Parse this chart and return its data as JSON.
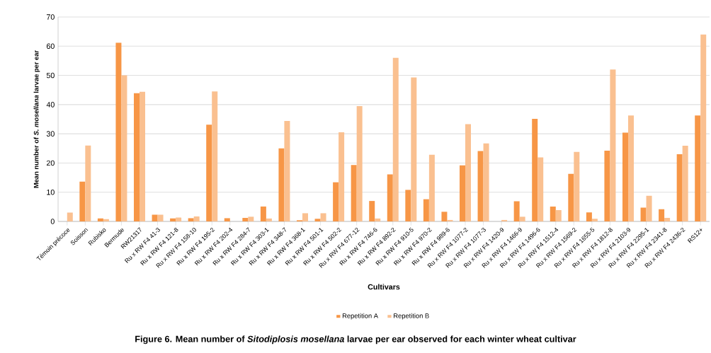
{
  "chart_data": {
    "type": "bar",
    "xlabel": "Cultivars",
    "ylabel": "Mean number of *S. mosellana* larvae per ear",
    "annotations": [
      "Figure 6. Mean number of *Sitodiplosis mosellana* larvae per ear observed for each winter wheat cultivar"
    ],
    "categories": [
      "Témoin précoce",
      "Soisson",
      "Rubisko",
      "Bermude",
      "RW21317",
      "Ru x RW F4 41-3",
      "Ru x RW F4 121-8",
      "Ru x RW F4 158-10",
      "Ru x RW F4 195-2",
      "Ru x RW F4 202-4",
      "Ru x RW F4 284-7",
      "Ru x RW F4 303-1",
      "Ru x RW F4 348-7",
      "Ru x RW F4 368-1",
      "Ru x RW F4 501-1",
      "Ru x RW F4 502-2",
      "Ru x RW F4 677-12",
      "Ru x RW F4 746-6",
      "Ru x RW F4 892-2",
      "Ru x RW F4 910-5",
      "Ru x RW F4 970-2",
      "Ru x RW F4 989-6",
      "Ru x RW F4 1077-2",
      "Ru x RW F4 1077-3",
      "Ru x RW F4 1420-9",
      "Ru x RW F4 1466-9",
      "Ru x RW F4 1496-6",
      "Ru x RW F4 1512-4",
      "Ru x RW F4 1569-2",
      "Ru x RW F4 1655-5",
      "Ru x RW F4 1812-8",
      "Ru x RW F4 2103-9",
      "Ru x RW F4 2295-1",
      "Ru x RW F4 2341-8",
      "Ru x RW F4 2436-2",
      "RS12+"
    ],
    "series": [
      {
        "name": "Repetition A",
        "color": "#f79646",
        "values": [
          null,
          13.6,
          1,
          61.2,
          43.9,
          2.3,
          1,
          1.1,
          33.1,
          1.1,
          1.2,
          5.1,
          25,
          0.4,
          0.9,
          13.4,
          19.3,
          7,
          16.1,
          10.8,
          7.6,
          3.3,
          19.2,
          24.1,
          null,
          6.9,
          35.1,
          5.1,
          16.3,
          3.1,
          24.2,
          30.4,
          4.7,
          4.2,
          23,
          36.3
        ]
      },
      {
        "name": "Repetition B",
        "color": "#fac090",
        "values": [
          3,
          26,
          0.8,
          50,
          44.4,
          2.3,
          1.3,
          1.7,
          44.5,
          null,
          1.6,
          1,
          34.4,
          2.8,
          2.8,
          30.5,
          39.5,
          1,
          56,
          49.3,
          22.8,
          0.5,
          33.3,
          26.7,
          0.5,
          1.6,
          21.9,
          3.9,
          23.8,
          0.9,
          52,
          36.3,
          8.8,
          1.2,
          25.9,
          64
        ]
      }
    ],
    "ylim": [
      0,
      70
    ],
    "yticks": [
      0,
      10,
      20,
      30,
      40,
      50,
      60,
      70
    ],
    "grid": "y",
    "legend": "bottom"
  }
}
